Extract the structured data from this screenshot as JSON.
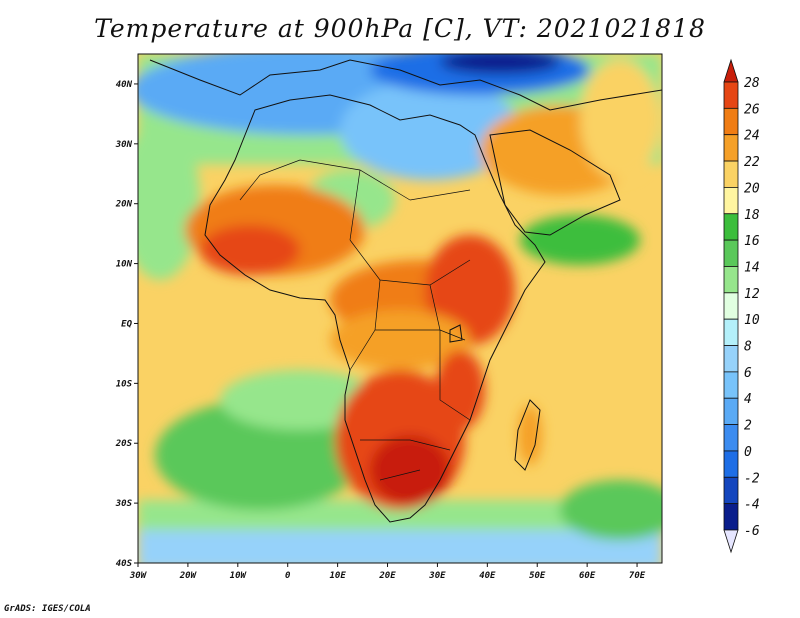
{
  "title": "Temperature at 900hPa [C], VT: 2021021818",
  "credit": "GrADS: IGES/COLA",
  "map": {
    "region": "Africa",
    "lon_range": [
      -30,
      75
    ],
    "lat_range": [
      -40,
      45
    ],
    "lat_ticks": [
      {
        "lat": 40,
        "label": "40N"
      },
      {
        "lat": 30,
        "label": "30N"
      },
      {
        "lat": 20,
        "label": "20N"
      },
      {
        "lat": 10,
        "label": "10N"
      },
      {
        "lat": 0,
        "label": "EQ"
      },
      {
        "lat": -10,
        "label": "10S"
      },
      {
        "lat": -20,
        "label": "20S"
      },
      {
        "lat": -30,
        "label": "30S"
      },
      {
        "lat": -40,
        "label": "40S"
      }
    ],
    "lon_ticks": [
      {
        "lon": -30,
        "label": "30W"
      },
      {
        "lon": -20,
        "label": "20W"
      },
      {
        "lon": -10,
        "label": "10W"
      },
      {
        "lon": 0,
        "label": "0"
      },
      {
        "lon": 10,
        "label": "10E"
      },
      {
        "lon": 20,
        "label": "20E"
      },
      {
        "lon": 30,
        "label": "30E"
      },
      {
        "lon": 40,
        "label": "40E"
      },
      {
        "lon": 50,
        "label": "50E"
      },
      {
        "lon": 60,
        "label": "60E"
      },
      {
        "lon": 70,
        "label": "70E"
      }
    ]
  },
  "colorbar": {
    "levels": [
      {
        "label": "-6",
        "color": "#e6e6ff"
      },
      {
        "label": "-4",
        "color": "#0a1e8c"
      },
      {
        "label": "-2",
        "color": "#1446be"
      },
      {
        "label": "0",
        "color": "#1e6ee6"
      },
      {
        "label": "2",
        "color": "#3c8cf0"
      },
      {
        "label": "4",
        "color": "#5aaaf5"
      },
      {
        "label": "6",
        "color": "#78c3fa"
      },
      {
        "label": "8",
        "color": "#96d2fa"
      },
      {
        "label": "10",
        "color": "#b4f0fa"
      },
      {
        "label": "12",
        "color": "#e1ffe1"
      },
      {
        "label": "14",
        "color": "#96e68c"
      },
      {
        "label": "16",
        "color": "#5ac85a"
      },
      {
        "label": "18",
        "color": "#3cbe3c"
      },
      {
        "label": "20",
        "color": "#fff5a0"
      },
      {
        "label": "22",
        "color": "#fad264"
      },
      {
        "label": "24",
        "color": "#f5a028"
      },
      {
        "label": "26",
        "color": "#f07d14"
      },
      {
        "label": "28",
        "color": "#e64614"
      }
    ],
    "top_color": "#c81e0a"
  }
}
